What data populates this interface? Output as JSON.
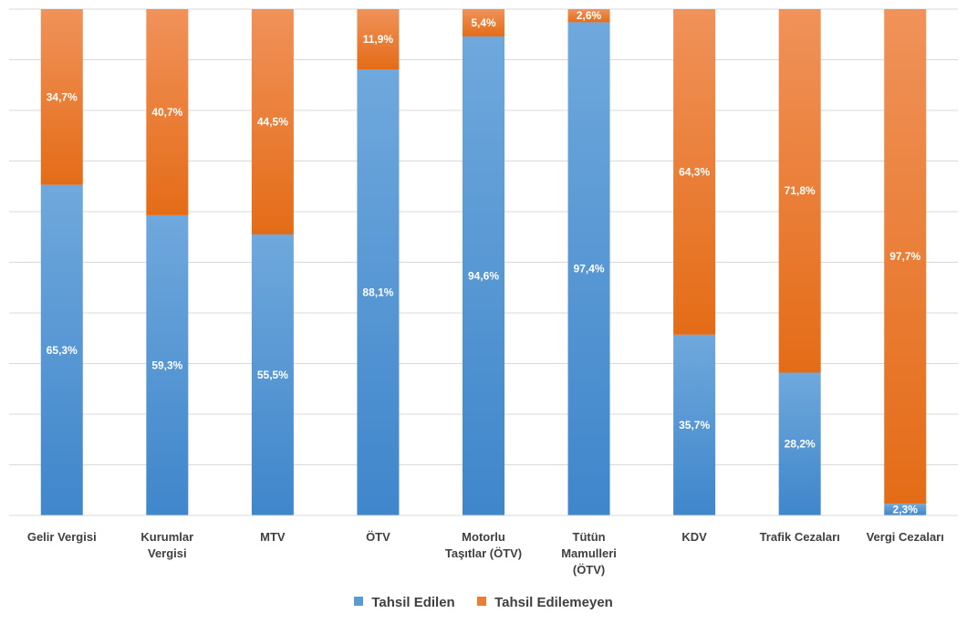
{
  "chart_data": {
    "type": "bar",
    "stacked": true,
    "percent": true,
    "categories": [
      [
        "Gelir Vergisi"
      ],
      [
        "Kurumlar",
        "Vergisi"
      ],
      [
        "MTV"
      ],
      [
        "ÖTV"
      ],
      [
        "Motorlu",
        "Taşıtlar (ÖTV)"
      ],
      [
        "Tütün",
        "Mamulleri",
        "(ÖTV)"
      ],
      [
        "KDV"
      ],
      [
        "Trafik Cezaları"
      ],
      [
        "Vergi Cezaları"
      ]
    ],
    "series": [
      {
        "name": "Tahsil Edilen",
        "color": "#5B9BD5",
        "values": [
          65.3,
          59.3,
          55.5,
          88.1,
          94.6,
          97.4,
          35.7,
          28.2,
          2.3
        ],
        "labels": [
          "65,3%",
          "59,3%",
          "55,5%",
          "88,1%",
          "94,6%",
          "97,4%",
          "35,7%",
          "28,2%",
          "2,3%"
        ]
      },
      {
        "name": "Tahsil Edilemeyen",
        "color": "#ED7D31",
        "values": [
          34.7,
          40.7,
          44.5,
          11.9,
          5.4,
          2.6,
          64.3,
          71.8,
          97.7
        ],
        "labels": [
          "34,7%",
          "40,7%",
          "44,5%",
          "11,9%",
          "5,4%",
          "2,6%",
          "64,3%",
          "71,8%",
          "97,7%"
        ]
      }
    ],
    "ylim": [
      0,
      100
    ],
    "grid": true,
    "legend_position": "bottom"
  }
}
